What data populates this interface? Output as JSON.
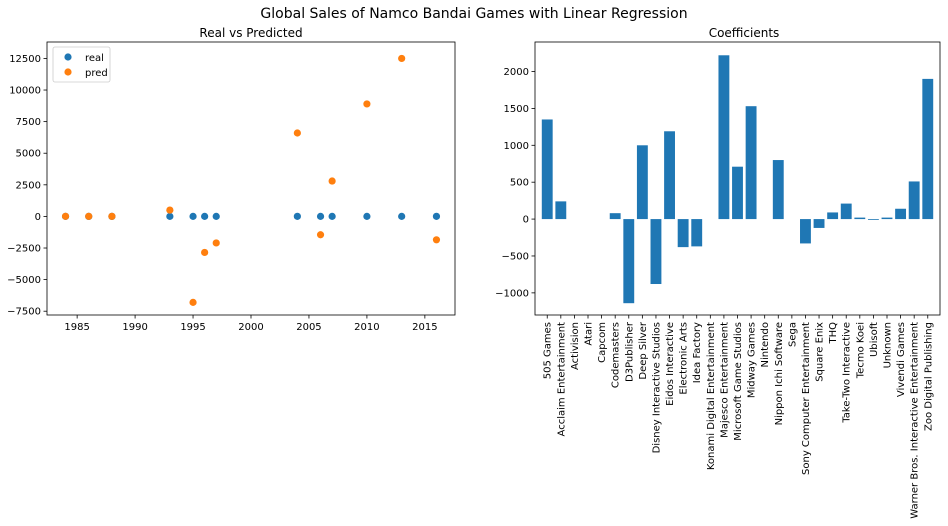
{
  "figure": {
    "title": "Global Sales of Namco Bandai Games with Linear Regression"
  },
  "chart_data": [
    {
      "type": "scatter",
      "title": "Real vs Predicted",
      "xlabel": "",
      "ylabel": "",
      "xlim": [
        1982.4,
        2017.6
      ],
      "ylim": [
        -7800,
        13800
      ],
      "xticks": [
        1985,
        1990,
        1995,
        2000,
        2005,
        2010,
        2015
      ],
      "yticks": [
        -7500,
        -5000,
        -2500,
        0,
        2500,
        5000,
        7500,
        10000,
        12500
      ],
      "legend": "upper-left",
      "grid": false,
      "series": [
        {
          "name": "real",
          "color": "#1f77b4",
          "points": [
            [
              1984,
              2
            ],
            [
              1986,
              1
            ],
            [
              1988,
              1
            ],
            [
              1993,
              3
            ],
            [
              1995,
              4
            ],
            [
              1996,
              2
            ],
            [
              1997,
              3
            ],
            [
              2004,
              5
            ],
            [
              2006,
              2
            ],
            [
              2007,
              3
            ],
            [
              2010,
              4
            ],
            [
              2013,
              3
            ],
            [
              2016,
              5
            ]
          ]
        },
        {
          "name": "pred",
          "color": "#ff7f0e",
          "points": [
            [
              1984,
              10
            ],
            [
              1986,
              5
            ],
            [
              1988,
              5
            ],
            [
              1993,
              500
            ],
            [
              1995,
              -6800
            ],
            [
              1996,
              -2850
            ],
            [
              1997,
              -2100
            ],
            [
              2004,
              6600
            ],
            [
              2006,
              -1450
            ],
            [
              2007,
              2800
            ],
            [
              2010,
              8900
            ],
            [
              2013,
              12500
            ],
            [
              2016,
              -1850
            ]
          ]
        }
      ]
    },
    {
      "type": "bar",
      "title": "Coefficients",
      "xlabel": "",
      "ylabel": "",
      "ylim": [
        -1300,
        2400
      ],
      "yticks": [
        -1000,
        -500,
        0,
        500,
        1000,
        1500,
        2000
      ],
      "grid": false,
      "color": "#1f77b4",
      "categories": [
        "505 Games",
        "Acclaim Entertainment",
        "Activision",
        "Atari",
        "Capcom",
        "Codemasters",
        "D3Publisher",
        "Deep Silver",
        "Disney Interactive Studios",
        "Eidos Interactive",
        "Electronic Arts",
        "Idea Factory",
        "Konami Digital Entertainment",
        "Majesco Entertainment",
        "Microsoft Game Studios",
        "Midway Games",
        "Nintendo",
        "Nippon Ichi Software",
        "Sega",
        "Sony Computer Entertainment",
        "Square Enix",
        "THQ",
        "Take-Two Interactive",
        "Tecmo Koei",
        "Ubisoft",
        "Unknown",
        "Vivendi Games",
        "Warner Bros. Interactive Entertainment",
        "Zoo Digital Publishing"
      ],
      "values": [
        1350,
        240,
        0,
        0,
        0,
        80,
        -1140,
        1000,
        -880,
        1190,
        -380,
        -370,
        0,
        2220,
        710,
        1530,
        0,
        800,
        0,
        -330,
        -120,
        90,
        210,
        20,
        -10,
        20,
        140,
        510,
        1900
      ]
    }
  ]
}
